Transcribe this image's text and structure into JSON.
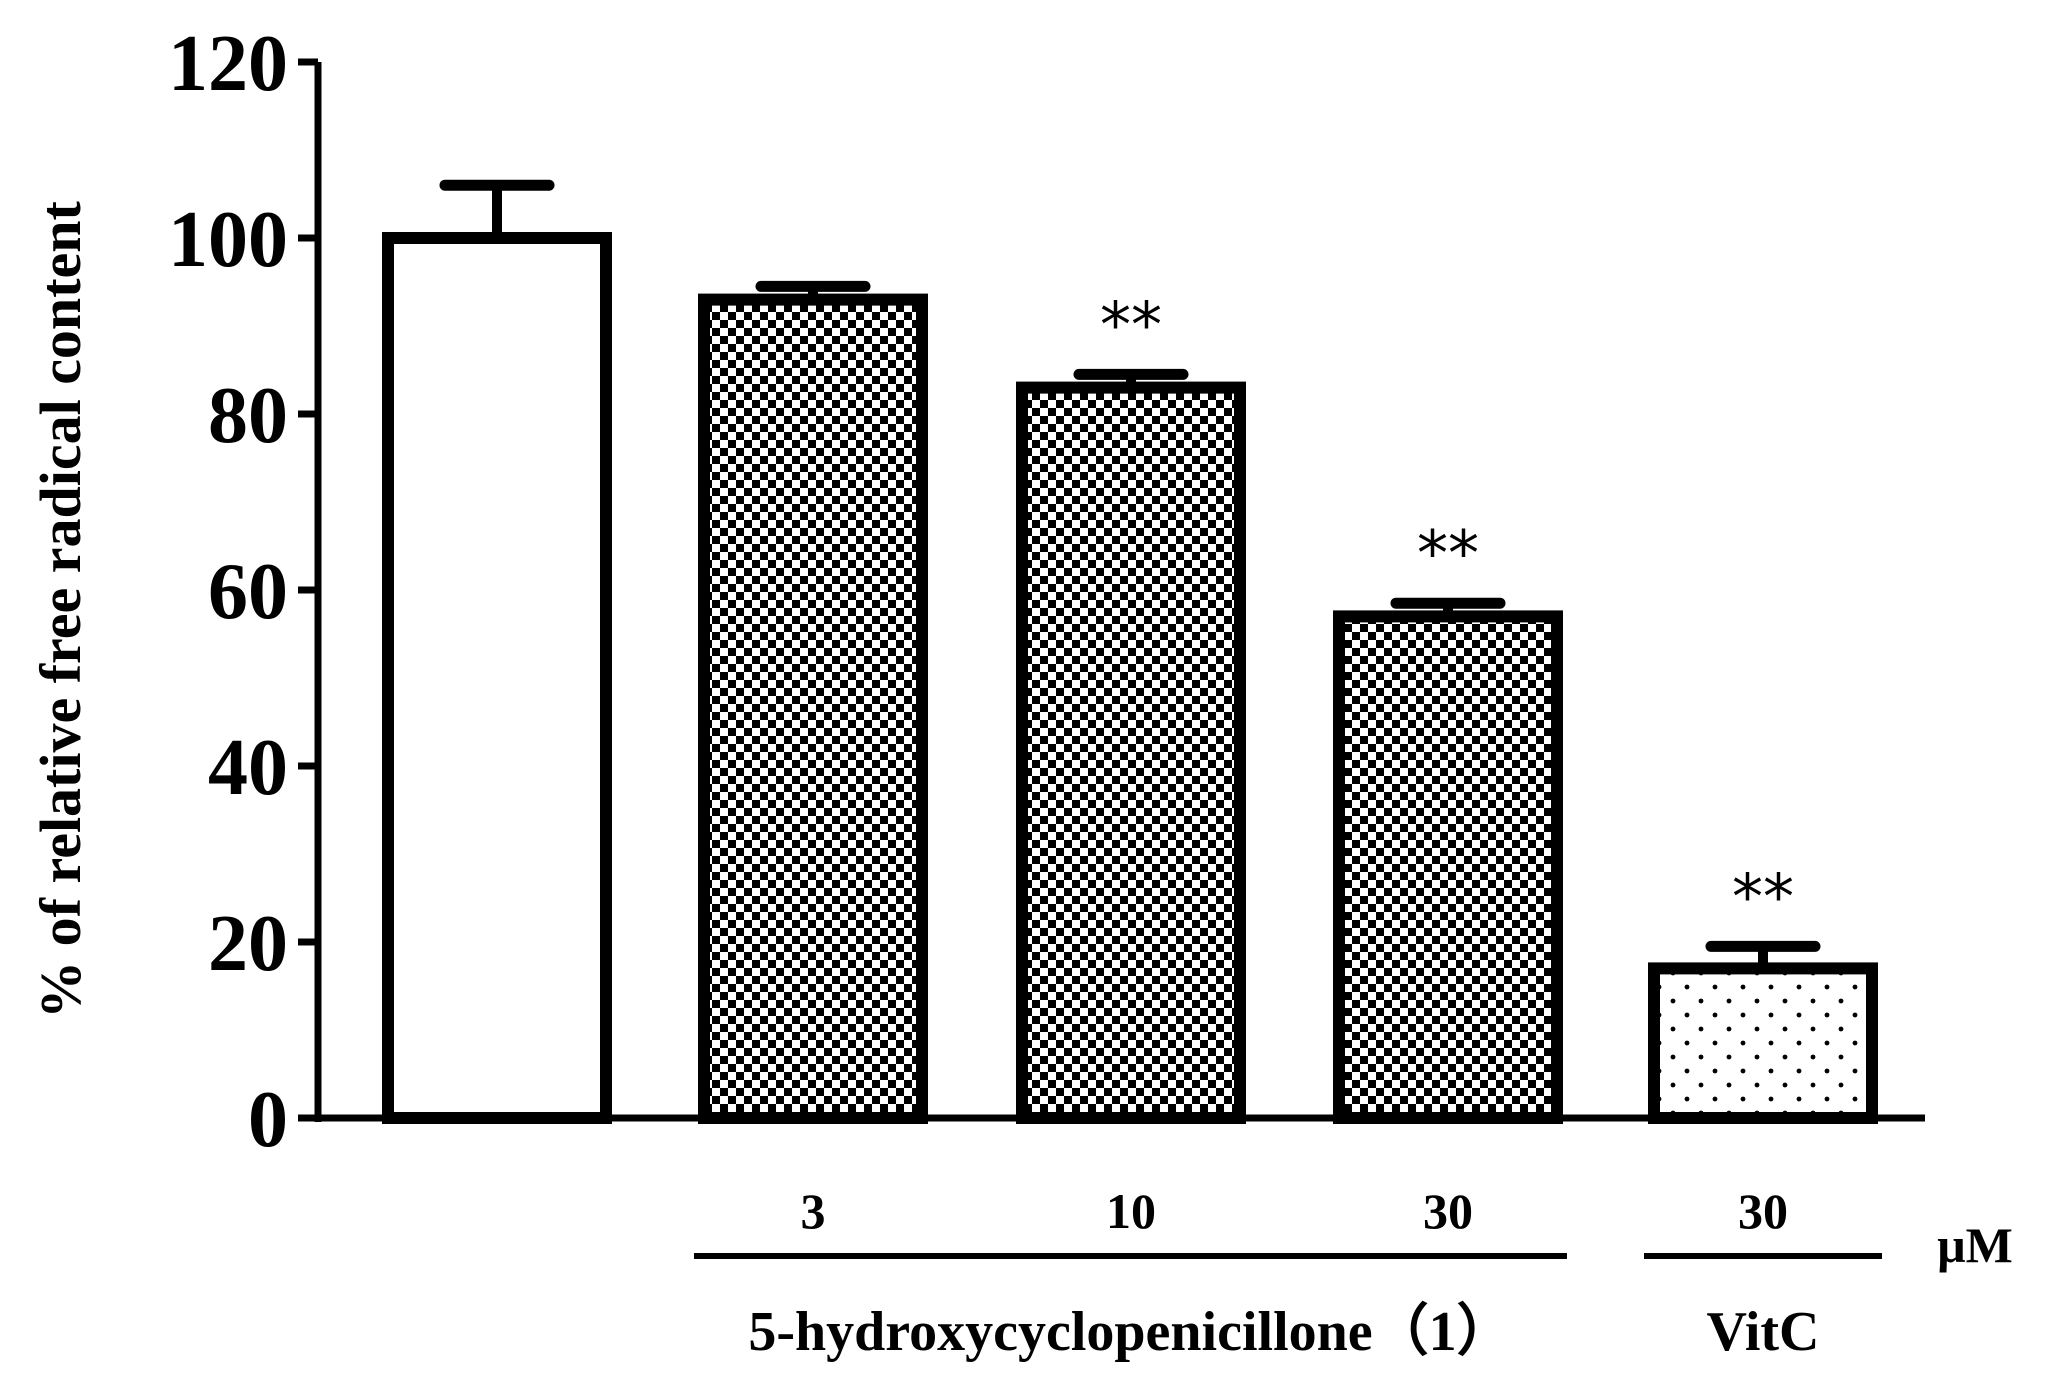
{
  "chart_data": {
    "type": "bar",
    "ylabel": "% of relative free radical content",
    "ylim": [
      0,
      120
    ],
    "yticks": [
      0,
      20,
      40,
      60,
      80,
      100,
      120
    ],
    "grid": false,
    "bars": [
      {
        "label": "",
        "value": 100,
        "error": 6,
        "significance": "",
        "pattern": "none"
      },
      {
        "label": "3",
        "value": 93,
        "error": 1.5,
        "significance": "",
        "pattern": "checker"
      },
      {
        "label": "10",
        "value": 83,
        "error": 1.5,
        "significance": "**",
        "pattern": "checker"
      },
      {
        "label": "30",
        "value": 57,
        "error": 1.5,
        "significance": "**",
        "pattern": "checker"
      },
      {
        "label": "30",
        "value": 17,
        "error": 2.5,
        "significance": "**",
        "pattern": "dots"
      }
    ],
    "unit_label": "μM",
    "groups": [
      {
        "name": "5-hydroxycyclopenicillone（1）",
        "bar_indices": [
          1,
          2,
          3
        ]
      },
      {
        "name": "VitC",
        "bar_indices": [
          4
        ]
      }
    ]
  },
  "colors": {
    "foreground": "#000000",
    "background": "#ffffff"
  }
}
